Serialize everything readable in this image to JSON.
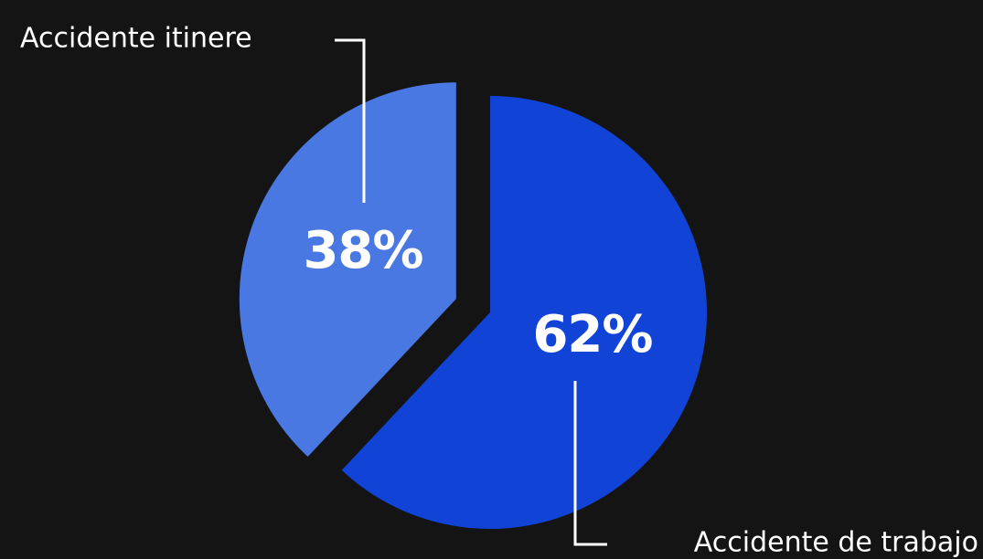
{
  "chart_data": {
    "type": "pie",
    "slices": [
      {
        "label": "Accidente de trabajo",
        "value": 62,
        "display": "62%",
        "color": "#1144d6"
      },
      {
        "label": "Accidente itinere",
        "value": 38,
        "display": "38%",
        "color": "#4a78e2"
      }
    ],
    "exploded_slice": "Accidente itinere",
    "background_color": "#141414",
    "legend": "none"
  }
}
